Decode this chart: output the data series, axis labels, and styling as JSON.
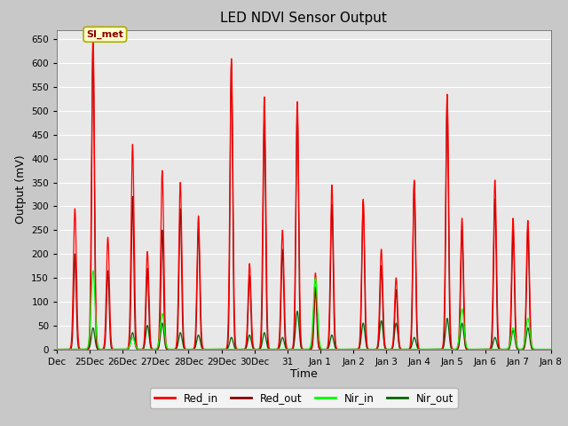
{
  "title": "LED NDVI Sensor Output",
  "xlabel": "Time",
  "ylabel": "Output (mV)",
  "ylim": [
    0,
    670
  ],
  "yticks": [
    0,
    50,
    100,
    150,
    200,
    250,
    300,
    350,
    400,
    450,
    500,
    550,
    600,
    650
  ],
  "annotation_text": "SI_met",
  "fig_facecolor": "#c8c8c8",
  "axes_facecolor": "#e8e8e8",
  "grid_color": "#ffffff",
  "red_in_color": "#ff0000",
  "red_out_color": "#8b0000",
  "nir_in_color": "#00ff00",
  "nir_out_color": "#006400",
  "x_labels": [
    "Dec",
    "25Dec",
    "26Dec",
    "27Dec",
    "28Dec",
    "29Dec",
    "30Dec",
    "31",
    "Jan 1",
    "Jan 2",
    "Jan 3",
    "Jan 4",
    "Jan 5",
    "Jan 6",
    "Jan 7",
    "Jan 8"
  ],
  "spike_centers_red_in": [
    0.55,
    1.1,
    1.55,
    2.3,
    2.75,
    3.2,
    3.75,
    4.3,
    5.3,
    5.85,
    6.3,
    6.85,
    7.3,
    7.85,
    8.35,
    9.3,
    9.85,
    10.3,
    10.85,
    11.85,
    12.3,
    13.3,
    13.85,
    14.3
  ],
  "spike_heights_red_in": [
    295,
    660,
    235,
    430,
    205,
    375,
    350,
    280,
    610,
    180,
    530,
    250,
    520,
    160,
    345,
    315,
    210,
    150,
    355,
    535,
    275,
    355,
    275,
    270
  ],
  "spike_centers_red_out": [
    0.55,
    1.1,
    1.55,
    2.3,
    2.75,
    3.2,
    3.75,
    4.3,
    5.3,
    5.85,
    6.3,
    6.85,
    7.3,
    7.85,
    8.35,
    9.3,
    9.85,
    10.3,
    10.85,
    11.85,
    12.3,
    13.3,
    13.85,
    14.3
  ],
  "spike_heights_red_out": [
    200,
    640,
    165,
    320,
    170,
    250,
    295,
    255,
    600,
    155,
    480,
    210,
    510,
    125,
    305,
    310,
    175,
    125,
    350,
    525,
    250,
    315,
    250,
    255
  ],
  "spike_centers_nir_in": [
    1.1,
    2.3,
    3.2,
    7.85,
    12.3,
    13.85,
    14.3
  ],
  "spike_heights_nir_in": [
    165,
    25,
    75,
    150,
    85,
    45,
    65
  ],
  "spike_centers_nir_out": [
    1.1,
    2.3,
    2.75,
    3.2,
    3.75,
    4.3,
    5.3,
    5.85,
    6.3,
    6.85,
    7.3,
    7.85,
    8.35,
    9.3,
    9.85,
    10.3,
    10.85,
    11.85,
    12.3,
    13.3,
    13.85,
    14.3
  ],
  "spike_heights_nir_out": [
    45,
    35,
    50,
    55,
    35,
    30,
    25,
    30,
    35,
    25,
    80,
    130,
    30,
    55,
    60,
    55,
    25,
    65,
    55,
    25,
    40,
    45
  ]
}
